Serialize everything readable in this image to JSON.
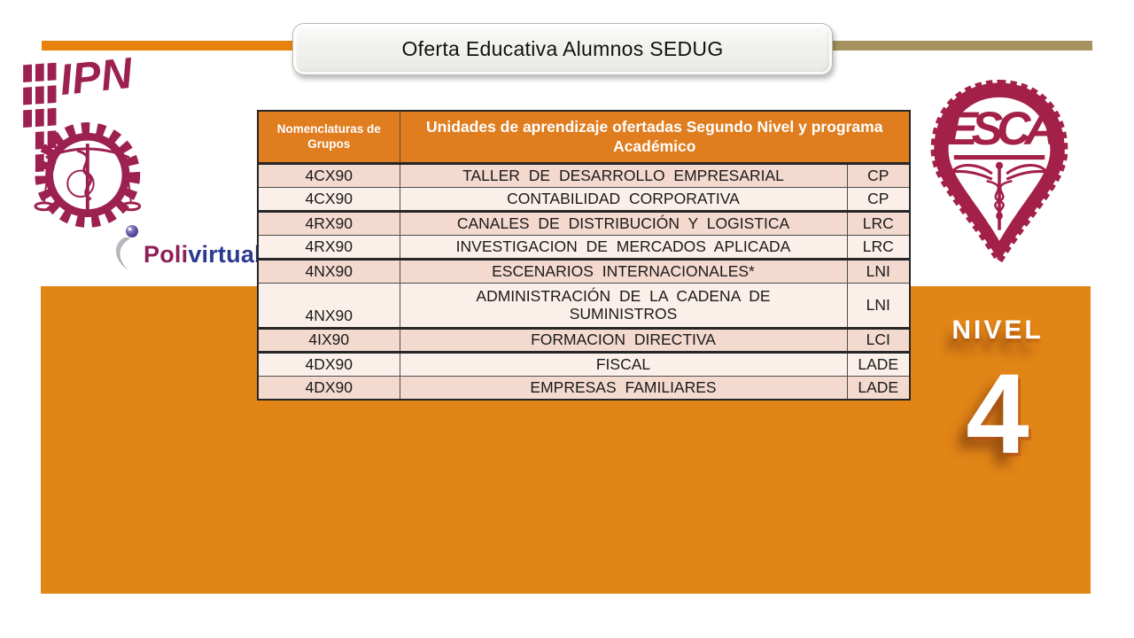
{
  "slide": {
    "title": "Oferta Educativa Alumnos SEDUG"
  },
  "logos": {
    "ipn_text": "IPN",
    "esca_text": "ESCA",
    "polivirtual": {
      "poli": "Poli",
      "virtual": "virtual"
    }
  },
  "table": {
    "header": {
      "col1": "Nomenclaturas de Grupos",
      "col2": "Unidades de aprendizaje ofertadas Segundo Nivel y programa Académico"
    },
    "rows": [
      {
        "group": "4CX90",
        "course": "TALLER DE DESARROLLO EMPRESARIAL",
        "program": "CP",
        "shade": "dark",
        "group_end": false,
        "tall": false
      },
      {
        "group": "4CX90",
        "course": "CONTABILIDAD CORPORATIVA",
        "program": "CP",
        "shade": "light",
        "group_end": true,
        "tall": false
      },
      {
        "group": "4RX90",
        "course": "CANALES DE DISTRIBUCIÓN Y LOGISTICA",
        "program": "LRC",
        "shade": "dark",
        "group_end": false,
        "tall": false
      },
      {
        "group": "4RX90",
        "course": "INVESTIGACION DE MERCADOS APLICADA",
        "program": "LRC",
        "shade": "light",
        "group_end": true,
        "tall": false
      },
      {
        "group": "4NX90",
        "course": "ESCENARIOS INTERNACIONALES*",
        "program": "LNI",
        "shade": "dark",
        "group_end": false,
        "tall": false
      },
      {
        "group": "4NX90",
        "course": "ADMINISTRACIÓN DE LA CADENA DE SUMINISTROS",
        "program": "LNI",
        "shade": "light",
        "group_end": true,
        "tall": true
      },
      {
        "group": "4IX90",
        "course": "FORMACION DIRECTIVA",
        "program": "LCI",
        "shade": "dark",
        "group_end": true,
        "tall": false
      },
      {
        "group": "4DX90",
        "course": "FISCAL",
        "program": "LADE",
        "shade": "light",
        "group_end": false,
        "tall": false
      },
      {
        "group": "4DX90",
        "course": "EMPRESAS FAMILIARES",
        "program": "LADE",
        "shade": "dark",
        "group_end": false,
        "tall": false
      }
    ]
  },
  "level": {
    "label": "NIVEL",
    "number": "4"
  },
  "colors": {
    "panel_orange": "#E28517",
    "header_orange": "#DF7D1F",
    "bar_orange": "#E8830D",
    "bar_tan": "#A6925E",
    "row_dark": "#F4D9CF",
    "row_light": "#FBEFE9",
    "maroon": "#9C2150",
    "esca_maroon": "#A32049",
    "poli_maroon": "#8C2057",
    "virtual_blue": "#2B3990"
  }
}
